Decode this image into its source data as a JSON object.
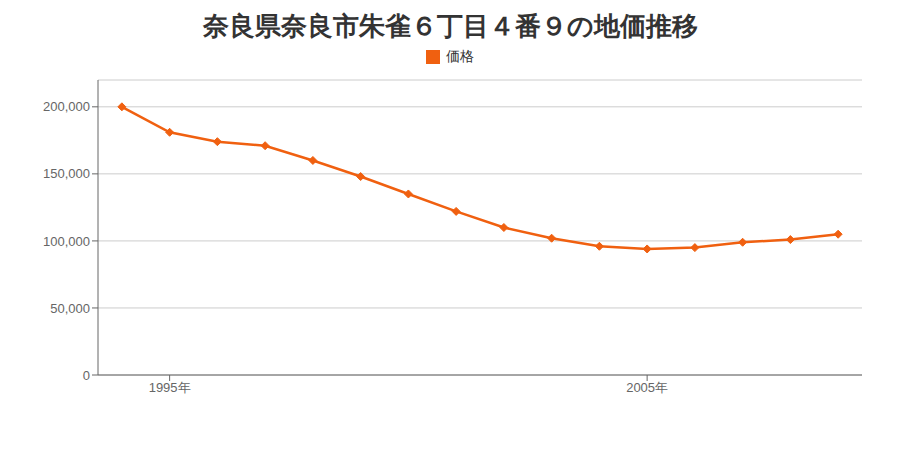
{
  "chart_data": {
    "type": "line",
    "title": "奈良県奈良市朱雀６丁目４番９の地価推移",
    "x": [
      1994,
      1995,
      1996,
      1997,
      1998,
      1999,
      2000,
      2001,
      2002,
      2003,
      2004,
      2005,
      2006,
      2007,
      2008,
      2009
    ],
    "series": [
      {
        "name": "価格",
        "color": "#f06010",
        "marker": "diamond",
        "values": [
          200000,
          181000,
          174000,
          171000,
          160000,
          148000,
          135000,
          122000,
          110000,
          102000,
          96000,
          94000,
          95000,
          99000,
          101000,
          105000
        ]
      }
    ],
    "xlim": [
      1993.5,
      2009.5
    ],
    "xticks": [
      {
        "value": 1995,
        "label": "1995年"
      },
      {
        "value": 2005,
        "label": "2005年"
      }
    ],
    "ylim": [
      0,
      220000
    ],
    "yticks": [
      0,
      {
        "value": 50000,
        "label": "50,000"
      },
      {
        "value": 100000,
        "label": "100,000"
      },
      {
        "value": 150000,
        "label": "150,000"
      },
      {
        "value": 200000,
        "label": "200,000"
      }
    ],
    "grid": true,
    "legend": "top"
  }
}
